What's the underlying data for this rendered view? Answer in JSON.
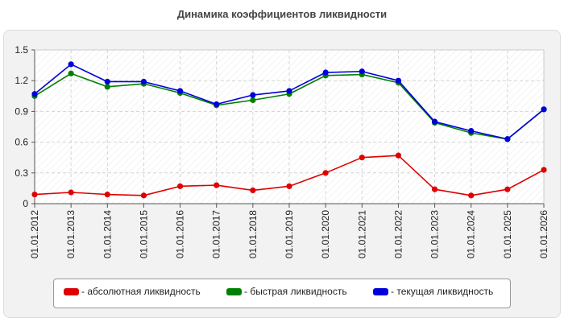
{
  "chart_data": {
    "type": "line",
    "title": "Динамика коэффициентов ликвидности",
    "xlabel": "",
    "ylabel": "",
    "categories": [
      "01.01.2012",
      "01.01.2013",
      "01.01.2014",
      "01.01.2015",
      "01.01.2016",
      "01.01.2017",
      "01.01.2018",
      "01.01.2019",
      "01.01.2020",
      "01.01.2021",
      "01.01.2022",
      "01.01.2023",
      "01.01.2024",
      "01.01.2025",
      "01.01.2026"
    ],
    "ylim": [
      0,
      1.5
    ],
    "yticks": [
      "0",
      "0.3",
      "0.6",
      "0.9",
      "1.2",
      "1.5"
    ],
    "grid": true,
    "legend_position": "bottom",
    "series": [
      {
        "name": "- абсолютная ликвидность",
        "color": "#e00000",
        "values": [
          0.09,
          0.11,
          0.09,
          0.08,
          0.17,
          0.18,
          0.13,
          0.17,
          0.3,
          0.45,
          0.47,
          0.14,
          0.08,
          0.14,
          0.33
        ]
      },
      {
        "name": "- быстрая ликвидность",
        "color": "#008000",
        "values": [
          1.05,
          1.27,
          1.14,
          1.17,
          1.08,
          0.96,
          1.01,
          1.07,
          1.25,
          1.26,
          1.18,
          0.79,
          0.69,
          0.63,
          0.92
        ]
      },
      {
        "name": "- текущая ликвидность",
        "color": "#0000dd",
        "values": [
          1.07,
          1.36,
          1.19,
          1.19,
          1.1,
          0.97,
          1.06,
          1.1,
          1.28,
          1.29,
          1.2,
          0.8,
          0.71,
          0.63,
          0.92
        ]
      }
    ]
  }
}
